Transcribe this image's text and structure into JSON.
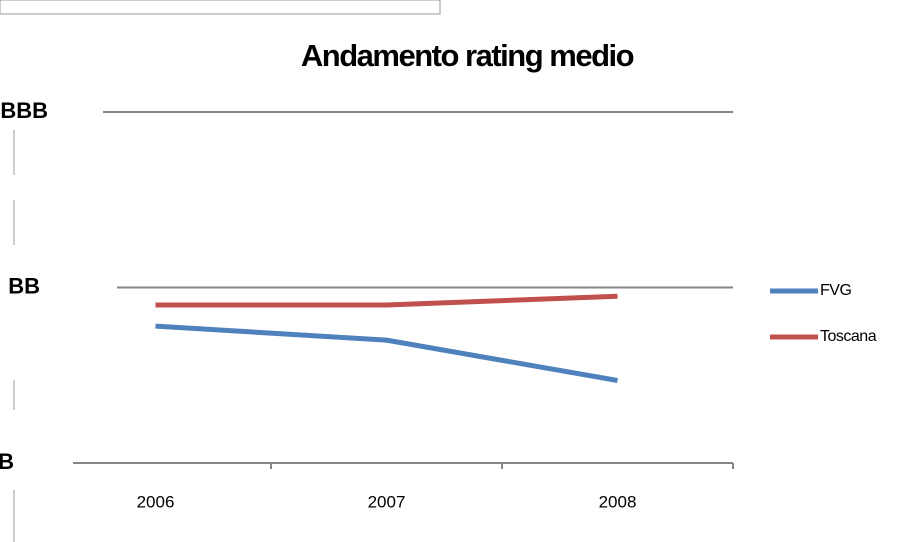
{
  "chart_data": {
    "type": "line",
    "title": "Andamento rating medio",
    "categories": [
      "2006",
      "2007",
      "2008"
    ],
    "series": [
      {
        "name": "FVG",
        "color": "#4f81bd",
        "values": [
          1.78,
          1.7,
          1.47
        ]
      },
      {
        "name": "Toscana",
        "color": "#c0504d",
        "values": [
          1.9,
          1.9,
          1.95
        ]
      }
    ],
    "ylim": [
      1,
      3
    ],
    "yticks": [
      {
        "value": 1,
        "label": "B"
      },
      {
        "value": 2,
        "label": "BB"
      },
      {
        "value": 3,
        "label": "BBB"
      }
    ],
    "grid": true,
    "legend": "right"
  }
}
